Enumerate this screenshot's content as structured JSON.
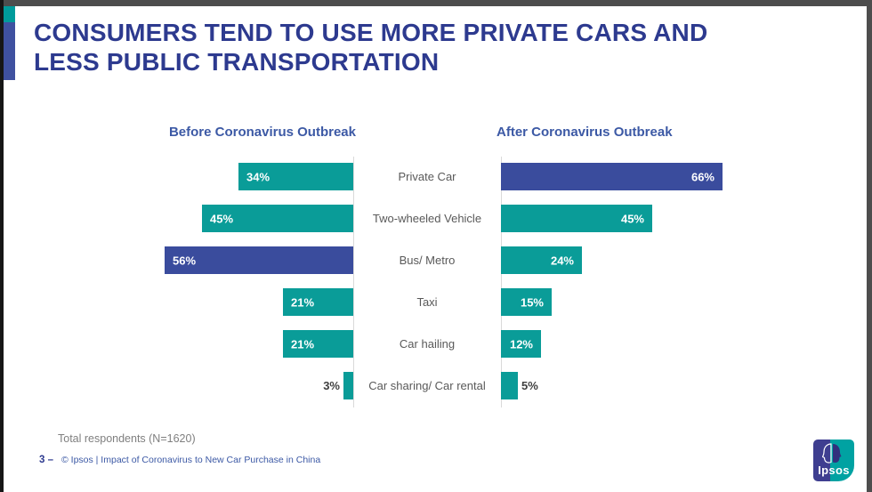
{
  "page": {
    "title_line1": "CONSUMERS TEND TO USE MORE PRIVATE CARS AND",
    "title_line2": "LESS PUBLIC TRANSPORTATION"
  },
  "chart_data": {
    "type": "bar",
    "orientation": "horizontal-diverging",
    "categories": [
      "Private Car",
      "Two-wheeled Vehicle",
      "Bus/ Metro",
      "Taxi",
      "Car hailing",
      "Car sharing/ Car rental"
    ],
    "series": [
      {
        "name": "Before Coronavirus Outbreak",
        "values": [
          34,
          45,
          56,
          21,
          21,
          3
        ]
      },
      {
        "name": "After Coronavirus Outbreak",
        "values": [
          66,
          45,
          24,
          15,
          12,
          5
        ]
      }
    ],
    "value_suffix": "%",
    "bar_color": "#0a9c98",
    "highlight_color": "#3a4c9d",
    "highlights": [
      {
        "series": 0,
        "index": 2
      },
      {
        "series": 1,
        "index": 0
      }
    ],
    "value_label_inside_color": "#ffffff",
    "value_label_outside_color": "#3f3f3f",
    "xlim": [
      0,
      70
    ],
    "grid": false,
    "legend_position": "column-headers"
  },
  "footer": {
    "note": "Total respondents (N=1620)",
    "page_number": "3",
    "page_number_sep": "–",
    "source": "© Ipsos | Impact of Coronavirus to New Car Purchase in China"
  },
  "logo": {
    "wordmark": "Ipsos"
  }
}
